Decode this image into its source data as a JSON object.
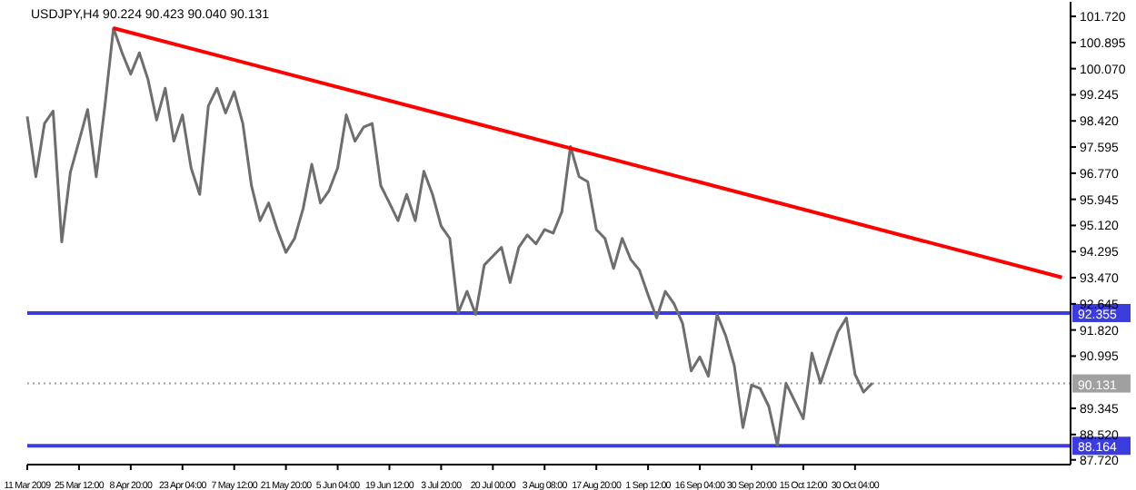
{
  "chart_data": {
    "type": "line",
    "title": "USDJPY,H4  90.224 90.423 90.040 90.131",
    "categories": [
      "11 Mar 2009",
      null,
      null,
      null,
      null,
      null,
      "25 Mar 12:00",
      null,
      null,
      null,
      null,
      null,
      "8 Apr 20:00",
      null,
      null,
      null,
      null,
      null,
      "23 Apr 04:00",
      null,
      null,
      null,
      null,
      null,
      "7 May 12:00",
      null,
      null,
      null,
      null,
      null,
      "21 May 20:00",
      null,
      null,
      null,
      null,
      null,
      "5 Jun 04:00",
      null,
      null,
      null,
      null,
      null,
      "19 Jun 12:00",
      null,
      null,
      null,
      null,
      null,
      "3 Jul 20:00",
      null,
      null,
      null,
      null,
      null,
      "20 Jul 00:00",
      null,
      null,
      null,
      null,
      null,
      "3 Aug 08:00",
      null,
      null,
      null,
      null,
      null,
      "17 Aug 20:00",
      null,
      null,
      null,
      null,
      null,
      "1 Sep 12:00",
      null,
      null,
      null,
      null,
      null,
      "16 Sep 04:00",
      null,
      null,
      null,
      null,
      null,
      "30 Sep 20:00",
      null,
      null,
      null,
      null,
      null,
      "15 Oct 12:00",
      null,
      null,
      null,
      null,
      null,
      "30 Oct 04:00",
      null,
      null,
      null,
      null,
      null,
      null,
      null,
      null,
      null,
      null,
      null,
      null,
      null,
      null,
      null,
      null,
      null,
      null,
      null,
      null,
      null,
      null,
      null,
      null,
      null
    ],
    "ylim": [
      87.57,
      102.18
    ],
    "yticks": [
      {
        "value": 101.72,
        "label": "101.720"
      },
      {
        "value": 100.895,
        "label": "100.895"
      },
      {
        "value": 100.07,
        "label": "100.070"
      },
      {
        "value": 99.245,
        "label": "99.245"
      },
      {
        "value": 98.42,
        "label": "98.420"
      },
      {
        "value": 97.595,
        "label": "97.595"
      },
      {
        "value": 96.77,
        "label": "96.770"
      },
      {
        "value": 95.945,
        "label": "95.945"
      },
      {
        "value": 95.12,
        "label": "95.120"
      },
      {
        "value": 94.295,
        "label": "94.295"
      },
      {
        "value": 93.47,
        "label": "93.470"
      },
      {
        "value": 92.645,
        "label": "92.645"
      },
      {
        "value": 91.82,
        "label": "91.820"
      },
      {
        "value": 90.995,
        "label": "90.995"
      },
      {
        "value": 89.345,
        "label": "89.345"
      },
      {
        "value": 88.52,
        "label": "88.520"
      },
      {
        "value": 87.72,
        "label": "87.720"
      }
    ],
    "grid": false,
    "series": [
      {
        "color": "#6e6e6e",
        "values": [
          98.56,
          96.66,
          98.34,
          98.73,
          94.6,
          96.8,
          97.78,
          98.78,
          96.66,
          98.89,
          101.35,
          100.57,
          99.9,
          100.57,
          99.73,
          98.45,
          99.45,
          97.78,
          98.61,
          96.94,
          96.1,
          98.89,
          99.45,
          98.67,
          99.34,
          98.34,
          96.38,
          95.27,
          95.83,
          94.99,
          94.27,
          94.71,
          95.66,
          97.05,
          95.83,
          96.22,
          96.94,
          98.61,
          97.78,
          98.22,
          98.34,
          96.38,
          95.83,
          95.27,
          96.1,
          95.27,
          96.83,
          96.1,
          95.1,
          94.71,
          92.37,
          93.04,
          92.31,
          93.87,
          94.15,
          94.43,
          93.32,
          94.43,
          94.82,
          94.54,
          94.99,
          94.88,
          95.55,
          97.61,
          96.66,
          96.5,
          94.99,
          94.71,
          93.76,
          94.71,
          94.04,
          93.71,
          92.93,
          92.2,
          93.04,
          92.65,
          92.03,
          90.53,
          90.97,
          90.36,
          92.31,
          91.64,
          90.7,
          88.74,
          90.08,
          89.97,
          89.41,
          88.18,
          90.14,
          89.58,
          89.02,
          91.09,
          90.14,
          90.97,
          91.75,
          92.2,
          90.42,
          89.86,
          90.14,
          null,
          null,
          null,
          null,
          null,
          null,
          null,
          null,
          null,
          null,
          null,
          null,
          null,
          null,
          null,
          null,
          null,
          null,
          null,
          null,
          null,
          null,
          null
        ]
      },
      {
        "color": "#ff0000",
        "values": [
          null,
          null,
          null,
          null,
          null,
          null,
          null,
          null,
          null,
          null,
          101.35,
          null,
          null,
          null,
          null,
          null,
          null,
          null,
          null,
          null,
          null,
          null,
          null,
          null,
          null,
          null,
          null,
          null,
          null,
          null,
          null,
          null,
          null,
          null,
          null,
          null,
          null,
          null,
          null,
          null,
          null,
          null,
          null,
          null,
          null,
          null,
          null,
          null,
          null,
          null,
          null,
          null,
          null,
          null,
          null,
          null,
          null,
          null,
          null,
          null,
          null,
          null,
          null,
          null,
          null,
          null,
          null,
          null,
          null,
          null,
          null,
          null,
          null,
          null,
          null,
          null,
          null,
          null,
          null,
          null,
          null,
          null,
          null,
          null,
          null,
          null,
          null,
          null,
          null,
          null,
          null,
          null,
          null,
          null,
          null,
          null,
          null,
          null,
          null,
          null,
          null,
          null,
          null,
          null,
          null,
          null,
          null,
          null,
          null,
          null,
          null,
          null,
          null,
          null,
          null,
          null,
          null,
          null,
          null,
          null,
          93.48,
          null
        ]
      }
    ],
    "ref_lines": [
      {
        "axis": "y",
        "value": 92.355,
        "label": "92.355",
        "color": "#3c3cdc",
        "line_style": "solid"
      },
      {
        "axis": "y",
        "value": 90.131,
        "label": "90.131",
        "color": "#a0a0a0",
        "line_style": "dotted"
      },
      {
        "axis": "y",
        "value": 88.164,
        "label": "88.164",
        "color": "#3c3cdc",
        "line_style": "solid"
      }
    ]
  }
}
